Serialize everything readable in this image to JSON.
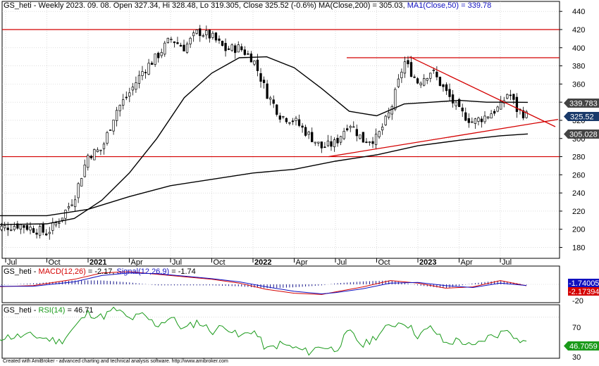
{
  "colors": {
    "price_up_fill": "#ffffff",
    "price_down_fill": "#000000",
    "candle_stroke": "#000000",
    "ma200": "#000000",
    "ma50": "#000000",
    "trend": "#d40000",
    "macd": "#d40000",
    "signal": "#1010c0",
    "hist": "#000080",
    "rsi": "#1a9a1a",
    "text_ma50": "#1010c0",
    "grid": "#c8c8c8",
    "axis_bg": "#ffffff"
  },
  "main_panel": {
    "ticker": "GS_heti",
    "period": "Weekly",
    "date": "2023. 09. 08.",
    "open_label": "Open",
    "open": "327.34",
    "hi_label": "Hi",
    "hi": "328.48",
    "lo_label": "Lo",
    "lo": "319.305",
    "close_label": "Close",
    "close": "325.52",
    "change": "(-0.6%)",
    "ma200_label": "MA(Close,200)",
    "ma200": "305.03",
    "ma50_label": "MA1(Close,50)",
    "ma50": "339.78",
    "value_tags": {
      "ma50": "339.783",
      "close": "325.52",
      "ma200": "305.028"
    }
  },
  "macd_panel": {
    "ticker": "GS_heti",
    "macd_label": "MACD(12,26)",
    "macd": "-2.17",
    "signal_label": "Signal(12,26,9)",
    "signal": "-1.74",
    "value_tags": {
      "signal": "-1.74005",
      "macd": "-2.17394"
    }
  },
  "rsi_panel": {
    "ticker": "GS_heti",
    "rsi_label": "RSI(14)",
    "rsi": "46.71",
    "value_tag": "46.7059"
  },
  "footer": "Created with AmiBroker - advanced charting and technical analysis software. http://www.amibroker.com",
  "chart_data": [
    {
      "type": "candlestick",
      "title": "GS_heti - Weekly 2023. 09. 08.",
      "x_ticks": [
        "Jul",
        "Oct",
        "2021",
        "Apr",
        "Jul",
        "Oct",
        "2022",
        "Apr",
        "Jul",
        "Oct",
        "2023",
        "Apr",
        "Jul"
      ],
      "y_ticks": [
        180,
        200,
        220,
        240,
        260,
        280,
        300,
        320,
        340,
        360,
        380,
        400,
        420,
        440
      ],
      "ylim": [
        168,
        451
      ],
      "grid": true,
      "horizontal_levels": [
        420,
        389,
        280
      ],
      "trendlines": [
        {
          "name": "descending",
          "from": [
            "2022-11",
            390
          ],
          "to": [
            "2023-09",
            318
          ]
        },
        {
          "name": "ascending",
          "from": [
            "2022-06",
            280
          ],
          "to": [
            "2023-09",
            320
          ]
        }
      ],
      "last_close": 325.52,
      "ma200_last": 305.03,
      "ma50_last": 339.78
    },
    {
      "type": "line",
      "title": "GS_heti - MACD(12,26) = -2.17, Signal(12,26,9) = -1.74",
      "y_ticks": [
        -20
      ],
      "series": [
        {
          "name": "MACD(12,26)",
          "last": -2.17
        },
        {
          "name": "Signal(12,26,9)",
          "last": -1.74
        }
      ]
    },
    {
      "type": "line",
      "title": "GS_heti - RSI(14) = 46.71",
      "y_ticks": [
        30,
        70
      ],
      "ylim": [
        30,
        82
      ],
      "series": [
        {
          "name": "RSI(14)",
          "last": 46.71
        }
      ]
    }
  ]
}
